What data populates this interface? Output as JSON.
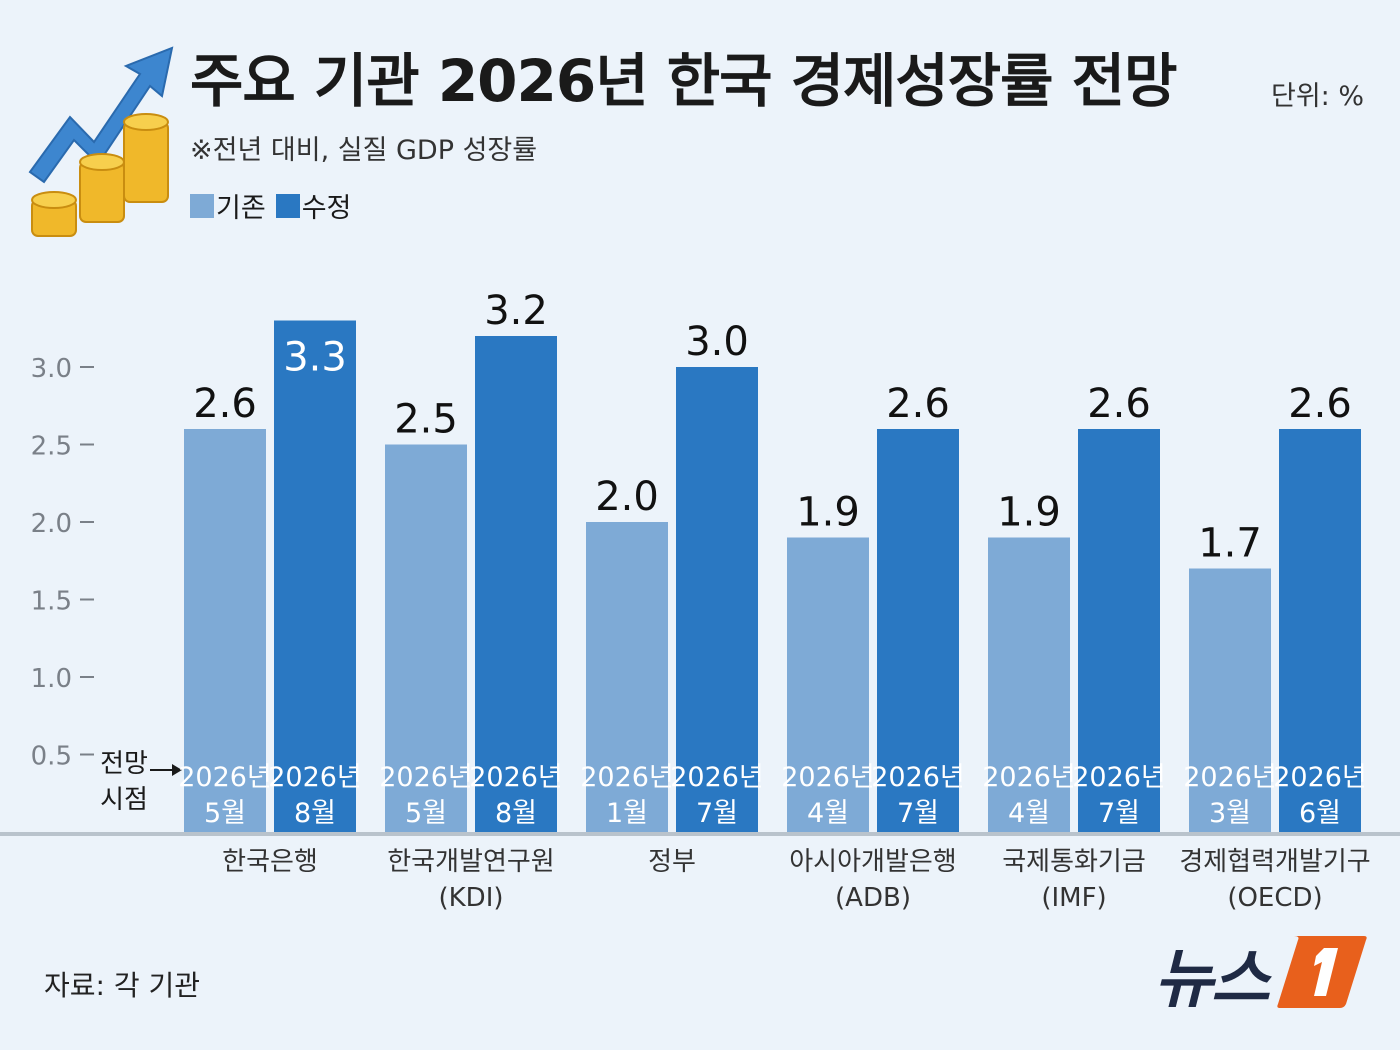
{
  "header": {
    "title": "주요 기관 2026년 한국 경제성장률 전망",
    "subtitle": "※전년 대비, 실질 GDP 성장률",
    "unit": "단위: %"
  },
  "legend": {
    "items": [
      {
        "label": "기존",
        "color": "#7eaad6"
      },
      {
        "label": "수정",
        "color": "#2a78c2"
      }
    ]
  },
  "forecast_label": {
    "line1": "전망",
    "line2": "시점"
  },
  "footer": {
    "source": "자료: 각 기관",
    "brand": "뉴스"
  },
  "icons": {
    "decoration": "rising-arrow-coins-icon",
    "brand": "news1-logo-icon"
  },
  "colors": {
    "existing": "#7eaad6",
    "revised": "#2a78c2",
    "brand_accent": "#e8601c"
  },
  "chart_data": {
    "type": "bar",
    "title": "주요 기관 2026년 한국 경제성장률 전망",
    "ylabel": "",
    "xlabel": "",
    "ylim": [
      0,
      3.3
    ],
    "yticks": [
      "3.0",
      "2.5",
      "2.0",
      "1.5",
      "1.0",
      "0.5"
    ],
    "grid": false,
    "legend_position": "top-left",
    "categories": [
      {
        "line1": "한국은행",
        "line2": ""
      },
      {
        "line1": "한국개발연구원",
        "line2": "(KDI)"
      },
      {
        "line1": "정부",
        "line2": ""
      },
      {
        "line1": "아시아개발은행",
        "line2": "(ADB)"
      },
      {
        "line1": "국제통화기금",
        "line2": "(IMF)"
      },
      {
        "line1": "경제협력개발기구",
        "line2": "(OECD)"
      }
    ],
    "series": [
      {
        "name": "기존",
        "values": [
          2.6,
          2.5,
          2.0,
          1.9,
          1.9,
          1.7
        ],
        "labels": [
          "2.6",
          "2.5",
          "2.0",
          "1.9",
          "1.9",
          "1.7"
        ],
        "dates": [
          {
            "year": "2026년",
            "month": "5월"
          },
          {
            "year": "2026년",
            "month": "5월"
          },
          {
            "year": "2026년",
            "month": "1월"
          },
          {
            "year": "2026년",
            "month": "4월"
          },
          {
            "year": "2026년",
            "month": "4월"
          },
          {
            "year": "2026년",
            "month": "3월"
          }
        ]
      },
      {
        "name": "수정",
        "values": [
          3.3,
          3.2,
          3.0,
          2.6,
          2.6,
          2.6
        ],
        "labels": [
          "3.3",
          "3.2",
          "3.0",
          "2.6",
          "2.6",
          "2.6"
        ],
        "dates": [
          {
            "year": "2026년",
            "month": "8월"
          },
          {
            "year": "2026년",
            "month": "8월"
          },
          {
            "year": "2026년",
            "month": "7월"
          },
          {
            "year": "2026년",
            "month": "7월"
          },
          {
            "year": "2026년",
            "month": "7월"
          },
          {
            "year": "2026년",
            "month": "6월"
          }
        ]
      }
    ]
  }
}
